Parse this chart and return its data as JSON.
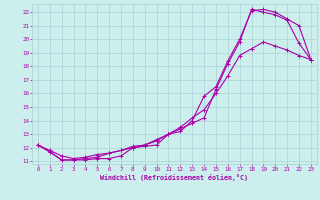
{
  "xlabel": "Windchill (Refroidissement éolien,°C)",
  "background_color": "#cceeed",
  "grid_color": "#aad4d4",
  "line_color": "#aa00aa",
  "xlim": [
    -0.5,
    23.5
  ],
  "ylim": [
    10.8,
    22.6
  ],
  "xticks": [
    0,
    1,
    2,
    3,
    4,
    5,
    6,
    7,
    8,
    9,
    10,
    11,
    12,
    13,
    14,
    15,
    16,
    17,
    18,
    19,
    20,
    21,
    22,
    23
  ],
  "yticks": [
    11,
    12,
    13,
    14,
    15,
    16,
    17,
    18,
    19,
    20,
    21,
    22
  ],
  "curve1_x": [
    0,
    1,
    2,
    3,
    4,
    5,
    6,
    7,
    8,
    9,
    10,
    11,
    12,
    13,
    14,
    15,
    16,
    17,
    18,
    19,
    20,
    21,
    22,
    23
  ],
  "curve1_y": [
    12.2,
    11.7,
    11.1,
    11.1,
    11.1,
    11.2,
    11.2,
    11.4,
    12.0,
    12.1,
    12.2,
    13.0,
    13.2,
    14.0,
    15.8,
    16.5,
    18.4,
    20.0,
    22.1,
    22.2,
    22.0,
    21.5,
    21.0,
    18.5
  ],
  "curve2_x": [
    0,
    1,
    2,
    3,
    4,
    5,
    6,
    7,
    8,
    9,
    10,
    11,
    12,
    13,
    14,
    15,
    16,
    17,
    18,
    19,
    20,
    21,
    22,
    23
  ],
  "curve2_y": [
    12.2,
    11.7,
    11.1,
    11.1,
    11.2,
    11.3,
    11.6,
    11.8,
    12.1,
    12.2,
    12.6,
    13.0,
    13.4,
    13.8,
    14.2,
    16.3,
    18.2,
    19.8,
    22.2,
    22.0,
    21.8,
    21.4,
    19.7,
    18.5
  ],
  "curve3_x": [
    0,
    1,
    2,
    3,
    4,
    5,
    6,
    7,
    8,
    9,
    10,
    11,
    12,
    13,
    14,
    15,
    16,
    17,
    18,
    19,
    20,
    21,
    22,
    23
  ],
  "curve3_y": [
    12.2,
    11.8,
    11.4,
    11.2,
    11.3,
    11.5,
    11.6,
    11.8,
    12.0,
    12.2,
    12.5,
    13.0,
    13.5,
    14.2,
    14.8,
    16.0,
    17.3,
    18.8,
    19.3,
    19.8,
    19.5,
    19.2,
    18.8,
    18.5
  ]
}
